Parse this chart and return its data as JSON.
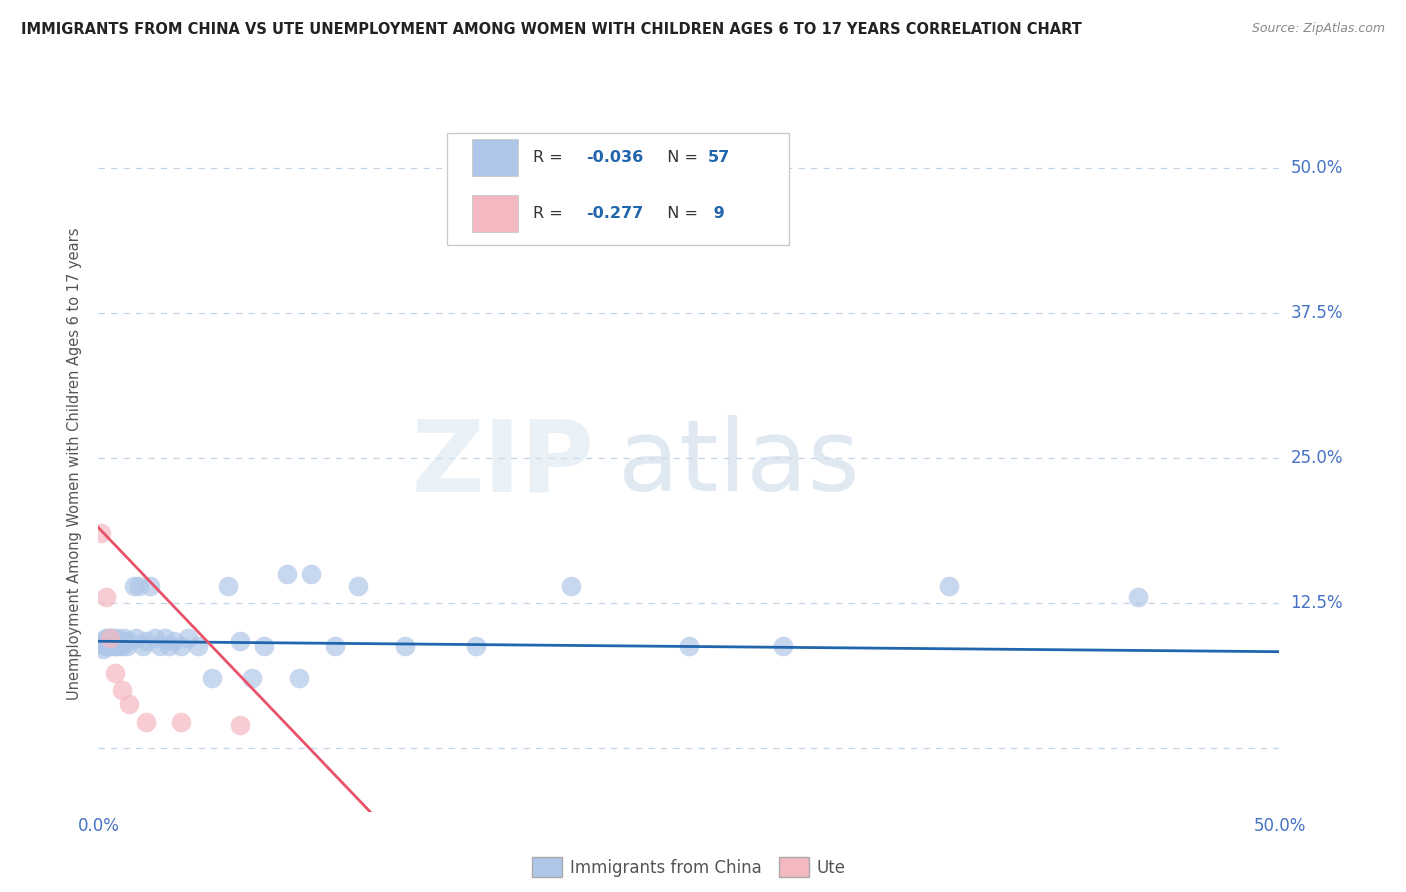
{
  "title": "IMMIGRANTS FROM CHINA VS UTE UNEMPLOYMENT AMONG WOMEN WITH CHILDREN AGES 6 TO 17 YEARS CORRELATION CHART",
  "source": "Source: ZipAtlas.com",
  "ylabel": "Unemployment Among Women with Children Ages 6 to 17 years",
  "xlim": [
    0.0,
    0.5
  ],
  "ylim": [
    -0.055,
    0.545
  ],
  "ytick_vals": [
    0.0,
    0.125,
    0.25,
    0.375,
    0.5
  ],
  "ytick_labels": [
    "",
    "12.5%",
    "25.0%",
    "37.5%",
    "50.0%"
  ],
  "xtick_vals": [
    0.0,
    0.125,
    0.25,
    0.375,
    0.5
  ],
  "xtick_labels": [
    "0.0%",
    "",
    "",
    "",
    "50.0%"
  ],
  "legend_label1": "Immigrants from China",
  "legend_label2": "Ute",
  "R1": "-0.036",
  "N1": "57",
  "R2": "-0.277",
  "N2": "9",
  "color1": "#aec6e8",
  "color2": "#f4b8c1",
  "line_color1": "#2166ac",
  "line_color2": "#e8526a",
  "watermark_zip": "ZIP",
  "watermark_atlas": "atlas",
  "background_color": "#ffffff",
  "grid_color": "#c0d4e8",
  "china_x": [
    0.001,
    0.002,
    0.002,
    0.003,
    0.003,
    0.003,
    0.004,
    0.004,
    0.004,
    0.005,
    0.005,
    0.005,
    0.006,
    0.006,
    0.006,
    0.007,
    0.007,
    0.008,
    0.008,
    0.009,
    0.009,
    0.01,
    0.01,
    0.011,
    0.012,
    0.013,
    0.015,
    0.016,
    0.017,
    0.019,
    0.02,
    0.022,
    0.024,
    0.026,
    0.028,
    0.03,
    0.032,
    0.035,
    0.038,
    0.042,
    0.048,
    0.055,
    0.06,
    0.065,
    0.07,
    0.08,
    0.085,
    0.09,
    0.1,
    0.11,
    0.13,
    0.16,
    0.2,
    0.25,
    0.29,
    0.36,
    0.44
  ],
  "china_y": [
    0.09,
    0.085,
    0.092,
    0.088,
    0.092,
    0.095,
    0.088,
    0.092,
    0.095,
    0.088,
    0.092,
    0.095,
    0.088,
    0.092,
    0.095,
    0.088,
    0.092,
    0.088,
    0.095,
    0.088,
    0.092,
    0.088,
    0.092,
    0.095,
    0.088,
    0.092,
    0.14,
    0.095,
    0.14,
    0.088,
    0.092,
    0.14,
    0.095,
    0.088,
    0.095,
    0.088,
    0.092,
    0.088,
    0.095,
    0.088,
    0.06,
    0.14,
    0.092,
    0.06,
    0.088,
    0.15,
    0.06,
    0.15,
    0.088,
    0.14,
    0.088,
    0.088,
    0.14,
    0.088,
    0.088,
    0.14,
    0.13
  ],
  "ute_x": [
    0.001,
    0.003,
    0.005,
    0.007,
    0.01,
    0.013,
    0.02,
    0.035,
    0.06
  ],
  "ute_y": [
    0.185,
    0.13,
    0.095,
    0.065,
    0.05,
    0.038,
    0.022,
    0.022,
    0.02
  ],
  "china_line_x": [
    0.0,
    0.5
  ],
  "china_line_y": [
    0.092,
    0.083
  ],
  "ute_line_x": [
    0.0,
    0.115
  ],
  "ute_line_y": [
    0.19,
    -0.055
  ]
}
